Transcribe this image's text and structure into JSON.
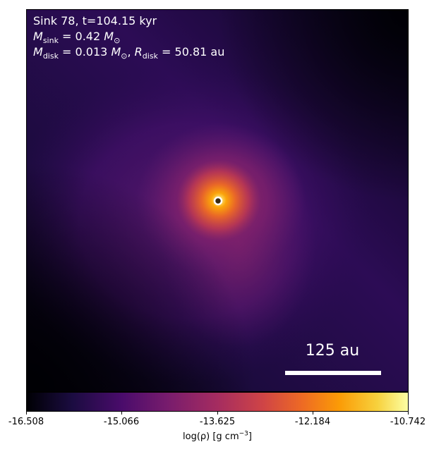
{
  "sink": {
    "id_label": "Sink 78",
    "time_label": "t=104.15 kyr",
    "m_sink_symbol": "M",
    "m_sink_subscript": "sink",
    "m_sink_value": "= 0.42",
    "m_sink_unit": "M",
    "m_sink_unit_subscript": "⊙",
    "m_disk_symbol": "M",
    "m_disk_subscript": "disk",
    "m_disk_value": "= 0.013",
    "m_disk_unit": "M",
    "m_disk_unit_subscript": "⊙",
    "separator": ",",
    "r_disk_symbol": "R",
    "r_disk_subscript": "disk",
    "r_disk_value": "= 50.81 au"
  },
  "scale_bar": {
    "label": "125 au",
    "color": "#ffffff"
  },
  "colorbar": {
    "colormap": "inferno",
    "ticks": [
      "-16.508",
      "-15.066",
      "-13.625",
      "-12.184",
      "-10.742"
    ],
    "label_prefix": "log(ρ) [g cm",
    "label_exponent": "−3",
    "label_suffix": "]"
  },
  "image": {
    "description_colors": {
      "background": "#0d0720",
      "core": "#fcffa4",
      "marker_ring": "#ffffff",
      "marker_center": "#3a2a10"
    }
  }
}
